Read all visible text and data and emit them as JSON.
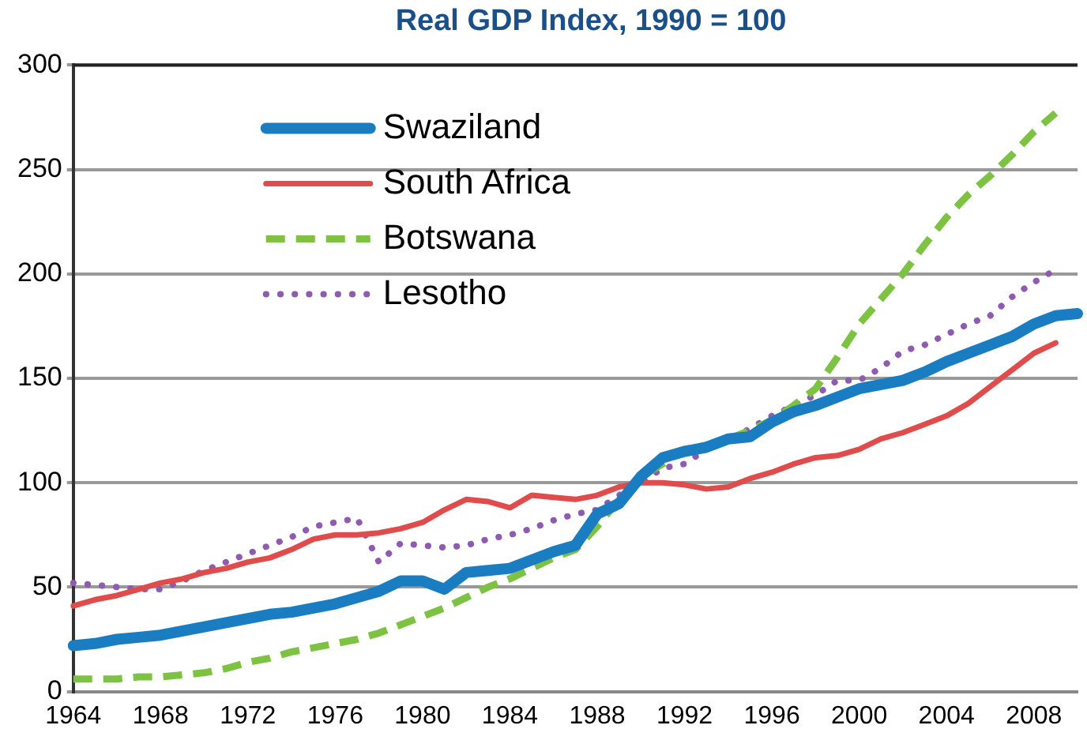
{
  "chart_data": {
    "type": "line",
    "title": "Real GDP Index, 1990 = 100",
    "categories": [
      "1964",
      null,
      null,
      null,
      "1968",
      null,
      null,
      null,
      "1972",
      null,
      null,
      null,
      "1976",
      null,
      null,
      null,
      "1980",
      null,
      null,
      null,
      "1984",
      null,
      null,
      null,
      "1988",
      null,
      null,
      null,
      "1992",
      null,
      null,
      null,
      "1996",
      null,
      null,
      null,
      "2000",
      null,
      null,
      null,
      "2004",
      null,
      null,
      null,
      "2008",
      null,
      null
    ],
    "series": [
      {
        "name": "Swaziland",
        "color": "#1a7dc1",
        "line_style": "solid",
        "values": [
          22,
          23,
          25,
          26,
          27,
          29,
          31,
          33,
          35,
          37,
          38,
          40,
          42,
          45,
          48,
          53,
          53,
          49,
          57,
          58,
          59,
          63,
          67,
          70,
          85,
          90,
          103,
          112,
          115,
          117,
          121,
          122,
          129,
          134,
          137,
          141,
          145,
          147,
          149,
          153,
          158,
          162,
          166,
          170,
          176,
          180,
          181
        ]
      },
      {
        "name": "South Africa",
        "color": "#e04b4b",
        "line_style": "solid",
        "values": [
          41,
          44,
          46,
          49,
          52,
          54,
          57,
          59,
          62,
          64,
          68,
          73,
          75,
          75,
          76,
          78,
          81,
          87,
          92,
          91,
          88,
          94,
          93,
          92,
          94,
          98,
          100,
          100,
          99,
          97,
          98,
          102,
          105,
          109,
          112,
          113,
          116,
          121,
          124,
          128,
          132,
          138,
          146,
          154,
          162,
          167,
          null
        ]
      },
      {
        "name": "Botswana",
        "color": "#7dc242",
        "line_style": "dashed",
        "values": [
          6,
          6,
          6,
          7,
          7,
          8,
          9,
          11,
          14,
          16,
          19,
          21,
          23,
          25,
          28,
          32,
          36,
          40,
          45,
          50,
          54,
          59,
          64,
          68,
          79,
          92,
          103,
          109,
          116,
          118,
          121,
          125,
          130,
          137,
          145,
          160,
          176,
          188,
          200,
          214,
          227,
          238,
          247,
          257,
          268,
          277,
          null
        ]
      },
      {
        "name": "Lesotho",
        "color": "#8e5bb0",
        "line_style": "dotted",
        "values": [
          52,
          51,
          50,
          49,
          49,
          53,
          58,
          62,
          66,
          70,
          74,
          79,
          81,
          83,
          62,
          71,
          70,
          69,
          70,
          73,
          75,
          78,
          82,
          85,
          87,
          94,
          100,
          107,
          109,
          116,
          120,
          126,
          132,
          137,
          142,
          149,
          149,
          155,
          163,
          166,
          171,
          176,
          180,
          189,
          196,
          202,
          null
        ]
      }
    ],
    "ylim": [
      0,
      300
    ],
    "yticks": [
      0,
      50,
      100,
      150,
      200,
      250,
      300
    ],
    "grid": "y",
    "legend": "top left",
    "marker": "none"
  }
}
